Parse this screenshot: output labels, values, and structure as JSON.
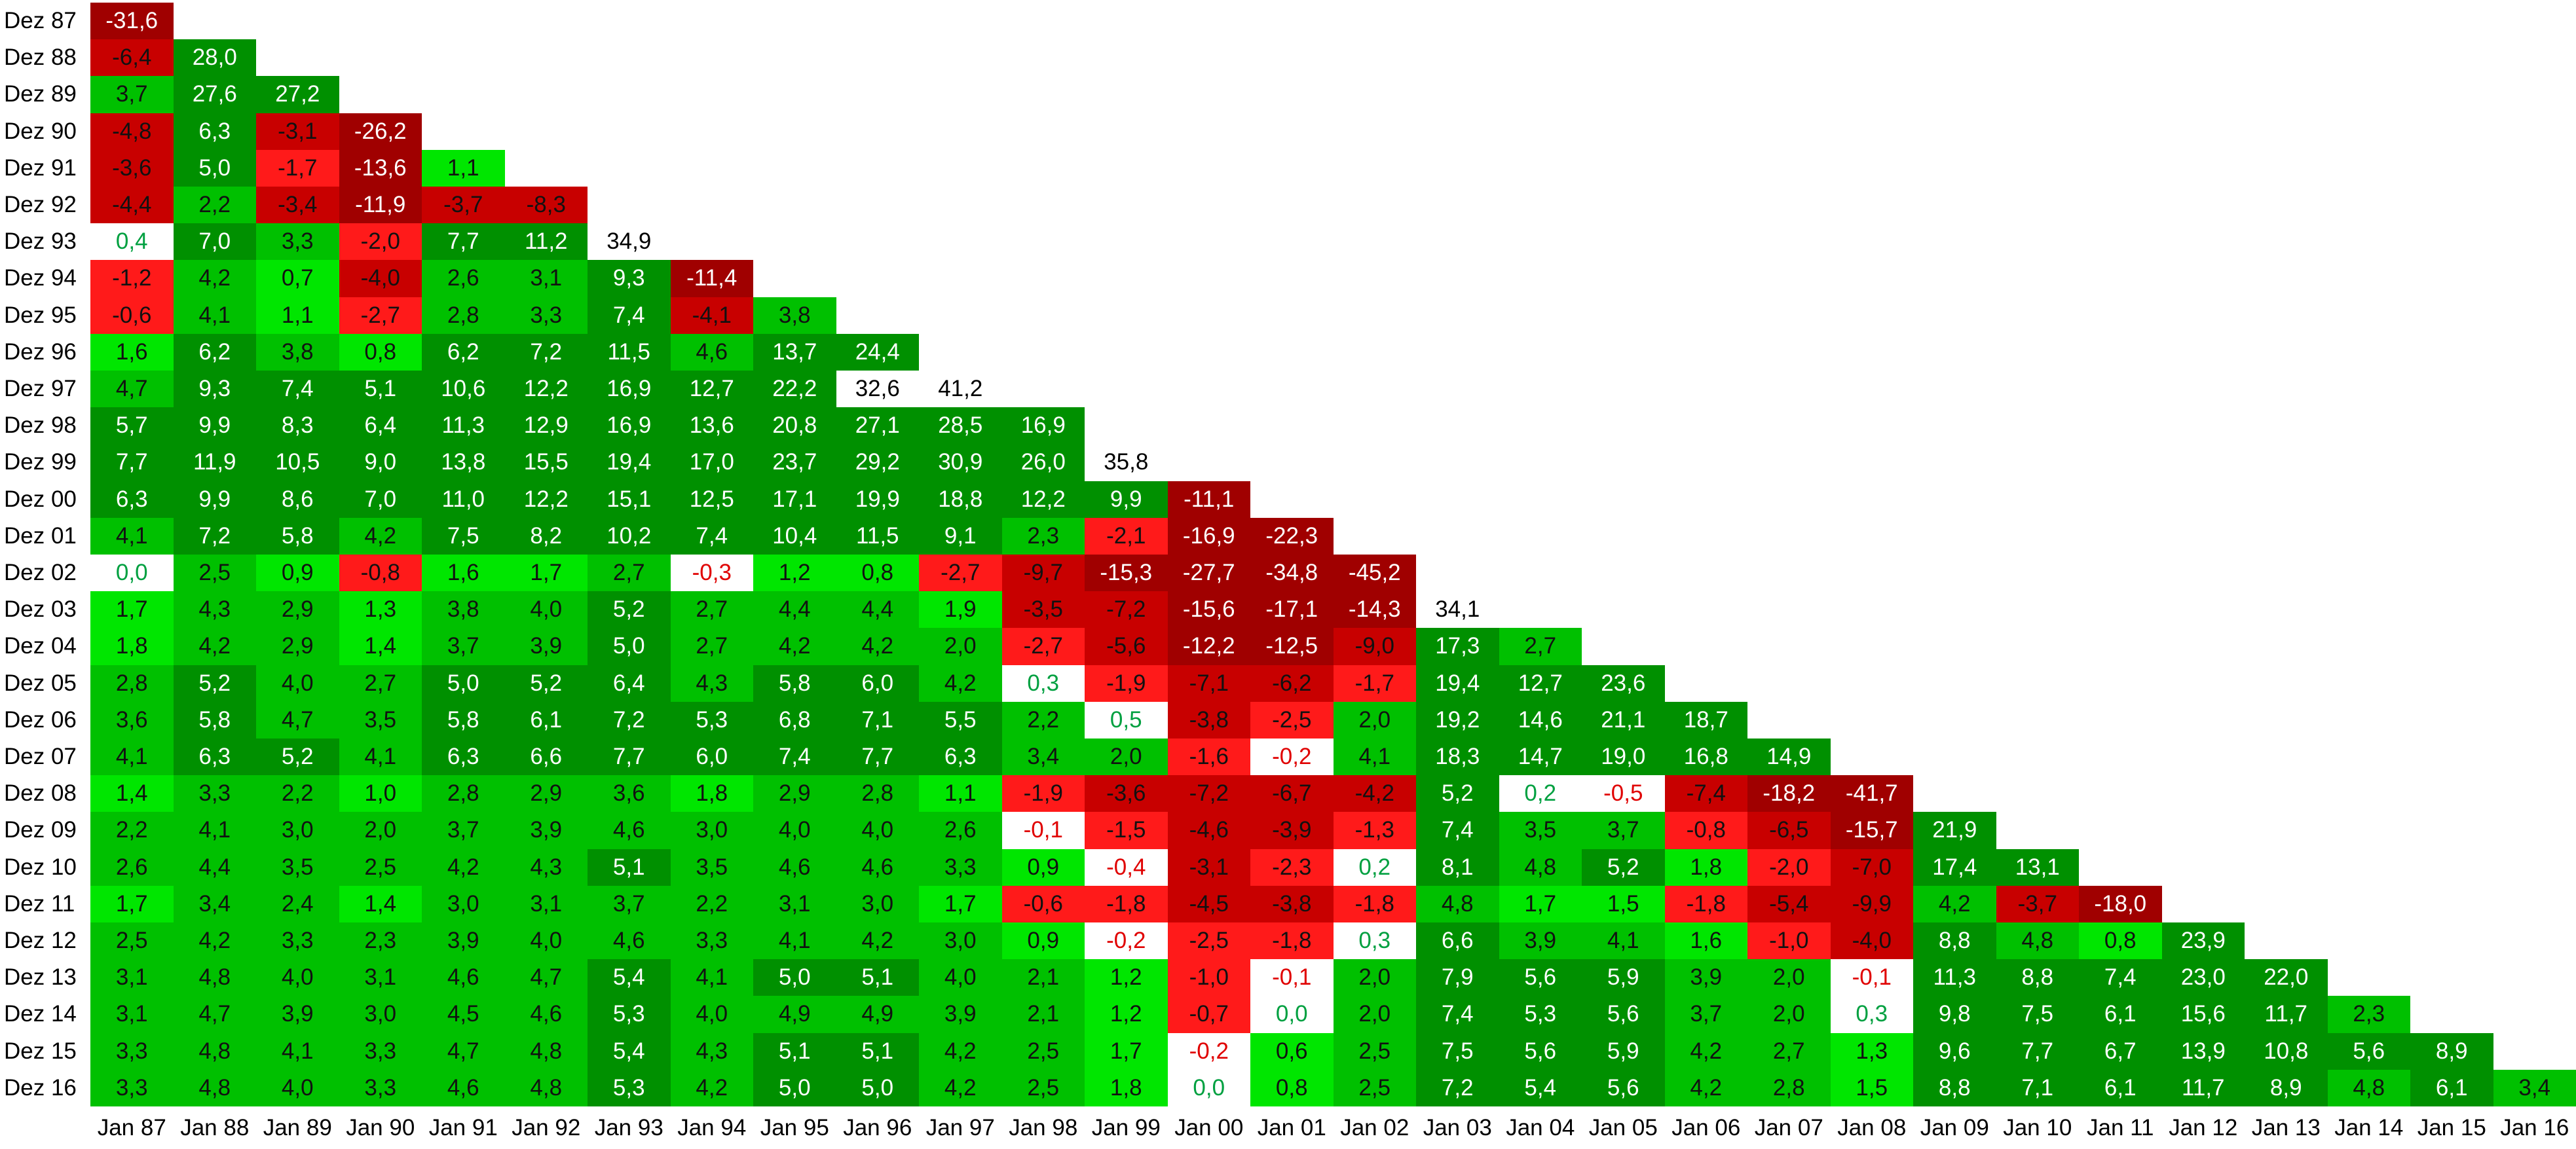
{
  "row_labels": [
    "Dez 87",
    "Dez 88",
    "Dez 89",
    "Dez 90",
    "Dez 91",
    "Dez 92",
    "Dez 93",
    "Dez 94",
    "Dez 95",
    "Dez 96",
    "Dez 97",
    "Dez 98",
    "Dez 99",
    "Dez 00",
    "Dez 01",
    "Dez 02",
    "Dez 03",
    "Dez 04",
    "Dez 05",
    "Dez 06",
    "Dez 07",
    "Dez 08",
    "Dez 09",
    "Dez 10",
    "Dez 11",
    "Dez 12",
    "Dez 13",
    "Dez 14",
    "Dez 15",
    "Dez 16"
  ],
  "column_labels": [
    "Jan 87",
    "Jan 88",
    "Jan 89",
    "Jan 90",
    "Jan 91",
    "Jan 92",
    "Jan 93",
    "Jan 94",
    "Jan 95",
    "Jan 96",
    "Jan 97",
    "Jan 98",
    "Jan 99",
    "Jan 00",
    "Jan 01",
    "Jan 02",
    "Jan 03",
    "Jan 04",
    "Jan 05",
    "Jan 06",
    "Jan 07",
    "Jan 08",
    "Jan 09",
    "Jan 10",
    "Jan 11",
    "Jan 12",
    "Jan 13",
    "Jan 14",
    "Jan 15",
    "Jan 16"
  ],
  "rows": [
    [
      "-31,6"
    ],
    [
      "-6,4",
      "28,0"
    ],
    [
      "3,7",
      "27,6",
      "27,2"
    ],
    [
      "-4,8",
      "6,3",
      "-3,1",
      "-26,2"
    ],
    [
      "-3,6",
      "5,0",
      "-1,7",
      "-13,6",
      "1,1"
    ],
    [
      "-4,4",
      "2,2",
      "-3,4",
      "-11,9",
      "-3,7",
      "-8,3"
    ],
    [
      "0,4",
      "7,0",
      "3,3",
      "-2,0",
      "7,7",
      "11,2",
      "34,9"
    ],
    [
      "-1,2",
      "4,2",
      "0,7",
      "-4,0",
      "2,6",
      "3,1",
      "9,3",
      "-11,4"
    ],
    [
      "-0,6",
      "4,1",
      "1,1",
      "-2,7",
      "2,8",
      "3,3",
      "7,4",
      "-4,1",
      "3,8"
    ],
    [
      "1,6",
      "6,2",
      "3,8",
      "0,8",
      "6,2",
      "7,2",
      "11,5",
      "4,6",
      "13,7",
      "24,4"
    ],
    [
      "4,7",
      "9,3",
      "7,4",
      "5,1",
      "10,6",
      "12,2",
      "16,9",
      "12,7",
      "22,2",
      "32,6",
      "41,2"
    ],
    [
      "5,7",
      "9,9",
      "8,3",
      "6,4",
      "11,3",
      "12,9",
      "16,9",
      "13,6",
      "20,8",
      "27,1",
      "28,5",
      "16,9"
    ],
    [
      "7,7",
      "11,9",
      "10,5",
      "9,0",
      "13,8",
      "15,5",
      "19,4",
      "17,0",
      "23,7",
      "29,2",
      "30,9",
      "26,0",
      "35,8"
    ],
    [
      "6,3",
      "9,9",
      "8,6",
      "7,0",
      "11,0",
      "12,2",
      "15,1",
      "12,5",
      "17,1",
      "19,9",
      "18,8",
      "12,2",
      "9,9",
      "-11,1"
    ],
    [
      "4,1",
      "7,2",
      "5,8",
      "4,2",
      "7,5",
      "8,2",
      "10,2",
      "7,4",
      "10,4",
      "11,5",
      "9,1",
      "2,3",
      "-2,1",
      "-16,9",
      "-22,3"
    ],
    [
      "0,0",
      "2,5",
      "0,9",
      "-0,8",
      "1,6",
      "1,7",
      "2,7",
      "-0,3",
      "1,2",
      "0,8",
      "-2,7",
      "-9,7",
      "-15,3",
      "-27,7",
      "-34,8",
      "-45,2"
    ],
    [
      "1,7",
      "4,3",
      "2,9",
      "1,3",
      "3,8",
      "4,0",
      "5,2",
      "2,7",
      "4,4",
      "4,4",
      "1,9",
      "-3,5",
      "-7,2",
      "-15,6",
      "-17,1",
      "-14,3",
      "34,1"
    ],
    [
      "1,8",
      "4,2",
      "2,9",
      "1,4",
      "3,7",
      "3,9",
      "5,0",
      "2,7",
      "4,2",
      "4,2",
      "2,0",
      "-2,7",
      "-5,6",
      "-12,2",
      "-12,5",
      "-9,0",
      "17,3",
      "2,7"
    ],
    [
      "2,8",
      "5,2",
      "4,0",
      "2,7",
      "5,0",
      "5,2",
      "6,4",
      "4,3",
      "5,8",
      "6,0",
      "4,2",
      "0,3",
      "-1,9",
      "-7,1",
      "-6,2",
      "-1,7",
      "19,4",
      "12,7",
      "23,6"
    ],
    [
      "3,6",
      "5,8",
      "4,7",
      "3,5",
      "5,8",
      "6,1",
      "7,2",
      "5,3",
      "6,8",
      "7,1",
      "5,5",
      "2,2",
      "0,5",
      "-3,8",
      "-2,5",
      "2,0",
      "19,2",
      "14,6",
      "21,1",
      "18,7"
    ],
    [
      "4,1",
      "6,3",
      "5,2",
      "4,1",
      "6,3",
      "6,6",
      "7,7",
      "6,0",
      "7,4",
      "7,7",
      "6,3",
      "3,4",
      "2,0",
      "-1,6",
      "-0,2",
      "4,1",
      "18,3",
      "14,7",
      "19,0",
      "16,8",
      "14,9"
    ],
    [
      "1,4",
      "3,3",
      "2,2",
      "1,0",
      "2,8",
      "2,9",
      "3,6",
      "1,8",
      "2,9",
      "2,8",
      "1,1",
      "-1,9",
      "-3,6",
      "-7,2",
      "-6,7",
      "-4,2",
      "5,2",
      "0,2",
      "-0,5",
      "-7,4",
      "-18,2",
      "-41,7"
    ],
    [
      "2,2",
      "4,1",
      "3,0",
      "2,0",
      "3,7",
      "3,9",
      "4,6",
      "3,0",
      "4,0",
      "4,0",
      "2,6",
      "-0,1",
      "-1,5",
      "-4,6",
      "-3,9",
      "-1,3",
      "7,4",
      "3,5",
      "3,7",
      "-0,8",
      "-6,5",
      "-15,7",
      "21,9"
    ],
    [
      "2,6",
      "4,4",
      "3,5",
      "2,5",
      "4,2",
      "4,3",
      "5,1",
      "3,5",
      "4,6",
      "4,6",
      "3,3",
      "0,9",
      "-0,4",
      "-3,1",
      "-2,3",
      "0,2",
      "8,1",
      "4,8",
      "5,2",
      "1,8",
      "-2,0",
      "-7,0",
      "17,4",
      "13,1"
    ],
    [
      "1,7",
      "3,4",
      "2,4",
      "1,4",
      "3,0",
      "3,1",
      "3,7",
      "2,2",
      "3,1",
      "3,0",
      "1,7",
      "-0,6",
      "-1,8",
      "-4,5",
      "-3,8",
      "-1,8",
      "4,8",
      "1,7",
      "1,5",
      "-1,8",
      "-5,4",
      "-9,9",
      "4,2",
      "-3,7",
      "-18,0"
    ],
    [
      "2,5",
      "4,2",
      "3,3",
      "2,3",
      "3,9",
      "4,0",
      "4,6",
      "3,3",
      "4,1",
      "4,2",
      "3,0",
      "0,9",
      "-0,2",
      "-2,5",
      "-1,8",
      "0,3",
      "6,6",
      "3,9",
      "4,1",
      "1,6",
      "-1,0",
      "-4,0",
      "8,8",
      "4,8",
      "0,8",
      "23,9"
    ],
    [
      "3,1",
      "4,8",
      "4,0",
      "3,1",
      "4,6",
      "4,7",
      "5,4",
      "4,1",
      "5,0",
      "5,1",
      "4,0",
      "2,1",
      "1,2",
      "-1,0",
      "-0,1",
      "2,0",
      "7,9",
      "5,6",
      "5,9",
      "3,9",
      "2,0",
      "-0,1",
      "11,3",
      "8,8",
      "7,4",
      "23,0",
      "22,0"
    ],
    [
      "3,1",
      "4,7",
      "3,9",
      "3,0",
      "4,5",
      "4,6",
      "5,3",
      "4,0",
      "4,9",
      "4,9",
      "3,9",
      "2,1",
      "1,2",
      "-0,7",
      "0,0",
      "2,0",
      "7,4",
      "5,3",
      "5,6",
      "3,7",
      "2,0",
      "0,3",
      "9,8",
      "7,5",
      "6,1",
      "15,6",
      "11,7",
      "2,3"
    ],
    [
      "3,3",
      "4,8",
      "4,1",
      "3,3",
      "4,7",
      "4,8",
      "5,4",
      "4,3",
      "5,1",
      "5,1",
      "4,2",
      "2,5",
      "1,7",
      "-0,2",
      "0,6",
      "2,5",
      "7,5",
      "5,6",
      "5,9",
      "4,2",
      "2,7",
      "1,3",
      "9,6",
      "7,7",
      "6,7",
      "13,9",
      "10,8",
      "5,6",
      "8,9"
    ],
    [
      "3,3",
      "4,8",
      "4,0",
      "3,3",
      "4,6",
      "4,8",
      "5,3",
      "4,2",
      "5,0",
      "5,0",
      "4,2",
      "2,5",
      "1,8",
      "0,0",
      "0,8",
      "2,5",
      "7,2",
      "5,4",
      "5,6",
      "4,2",
      "2,8",
      "1,5",
      "8,8",
      "7,1",
      "6,1",
      "11,7",
      "8,9",
      "4,8",
      "6,1",
      "3,4"
    ]
  ],
  "colors": {
    "neg_dark": "#a00000",
    "neg": "#c80000",
    "neg_light": "#ff1a1a",
    "zero": "#ffffff",
    "neg_text": "#e00000",
    "pos_text": "#00a040",
    "pos_light": "#00e600",
    "pos": "#00c000",
    "pos_dark": "#009000",
    "high": "#ffffff"
  }
}
